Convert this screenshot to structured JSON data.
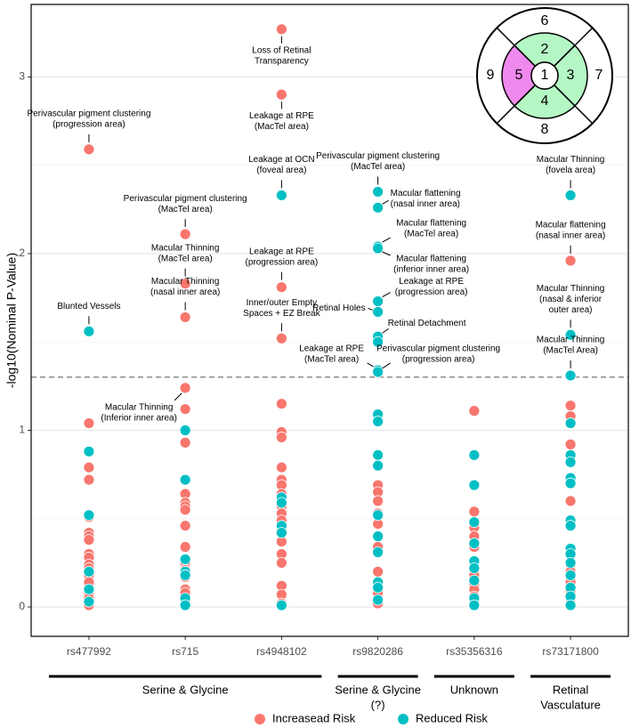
{
  "chart_data": {
    "type": "strip",
    "y_label": "-log10(Nominal P-Value)",
    "categories": [
      "rs477992",
      "rs715",
      "rs4948102",
      "rs9820286",
      "rs35356316",
      "rs73171800"
    ],
    "groups": [
      [
        "Serine & Glycine"
      ],
      [
        "Serine & Glycine",
        "(?)"
      ],
      [
        "Unknown"
      ],
      [
        "Retinal",
        "Vasculature"
      ]
    ],
    "ylim": [
      -0.166,
      3.41
    ],
    "yticks": [
      0,
      1,
      2,
      3
    ],
    "minor_grid": [
      0.5,
      1.5,
      2.5
    ],
    "grid": true,
    "hline": 1.301,
    "legend": "bottom",
    "inset": {
      "zones": [
        "1",
        "2",
        "3",
        "4",
        "5",
        "6",
        "7",
        "8",
        "9"
      ]
    },
    "series": [
      {
        "name": "Increasead Risk",
        "color": "#F8766D",
        "values": [
          [
            {
              "value": 2.59,
              "label": [
                "Perivascular pigment clustering",
                "(progression area)"
              ]
            },
            1.04,
            0.79,
            0.72,
            0.51,
            0.42,
            0.4,
            0.38,
            0.3,
            0.28,
            0.24,
            0.22,
            0.18,
            0.14,
            0.08,
            0.05,
            0.01
          ],
          [
            {
              "value": 2.11,
              "label": [
                "Perivascular pigment clustering",
                "(MacTel area)"
              ]
            },
            {
              "value": 1.83,
              "label": [
                "Macular Thinning",
                "(MacTel area)"
              ]
            },
            {
              "value": 1.64,
              "label": [
                "Macular Thinning",
                "(nasal inner area)"
              ]
            },
            {
              "value": 1.24,
              "label": [
                "Macular Thinning",
                "(Inferior inner area)"
              ]
            },
            1.12,
            0.93,
            0.64,
            0.59,
            0.57,
            0.55,
            0.46,
            0.34,
            0.25,
            0.21,
            0.17,
            0.1,
            0.08,
            0.02
          ],
          [
            {
              "value": 3.27,
              "label": [
                "Loss of Retinal",
                "Transparency"
              ]
            },
            {
              "value": 2.9,
              "label": [
                "Leakage at RPE",
                "(MacTel area)"
              ]
            },
            {
              "value": 1.81,
              "label": [
                "Leakage at RPE",
                "(progression area)"
              ]
            },
            {
              "value": 1.52,
              "label": [
                "Inner/outer Empty",
                "Spaces + EZ Break"
              ]
            },
            1.15,
            0.99,
            0.96,
            0.79,
            0.72,
            0.69,
            0.64,
            0.57,
            0.53,
            0.49,
            0.44,
            0.37,
            0.3,
            0.25,
            0.12,
            0.07,
            0.02
          ],
          [
            0.69,
            0.65,
            0.6,
            0.53,
            0.47,
            0.34,
            0.2,
            0.14,
            0.08,
            0.02
          ],
          [
            1.11,
            0.54,
            0.45,
            0.4,
            0.34,
            0.22,
            0.18,
            0.13,
            0.1,
            0.06,
            0.02
          ],
          [
            {
              "value": 1.96,
              "label": [
                "Macular flattening",
                "(nasal inner area)"
              ]
            },
            1.14,
            1.08,
            0.92,
            0.85,
            0.6,
            0.24,
            0.2,
            0.14,
            0.09,
            0.05,
            0.02
          ]
        ]
      },
      {
        "name": "Reduced Risk",
        "color": "#00BFC4",
        "values": [
          [
            {
              "value": 1.56,
              "label": [
                "Blunted Vessels"
              ]
            },
            0.88,
            0.52,
            0.2,
            0.1,
            0.03
          ],
          [
            1.0,
            0.72,
            0.27,
            0.2,
            0.18,
            0.05,
            0.01
          ],
          [
            {
              "value": 2.33,
              "label": [
                "Leakage at OCN",
                "(foveal area)"
              ]
            },
            0.62,
            0.59,
            0.46,
            0.42,
            0.01
          ],
          [
            {
              "value": 2.35,
              "label": [
                "Perivascular pigment clustering",
                "(MacTel area)"
              ]
            },
            {
              "value": 2.26,
              "label": [
                "Macular flattening",
                "(nasal inner area)"
              ]
            },
            {
              "value": 2.04,
              "label": [
                "Macular flattening",
                "(MacTel area)"
              ]
            },
            {
              "value": 2.03,
              "label": [
                "Macular flattening",
                "(inferior inner area)"
              ]
            },
            {
              "value": 1.73,
              "label": [
                "Leakage at RPE",
                "(progression area)"
              ]
            },
            {
              "value": 1.67,
              "label": [
                "Retinal Holes"
              ]
            },
            {
              "value": 1.53,
              "label": [
                "Retinal Detachment"
              ]
            },
            {
              "value": 1.34,
              "label": [
                "Leakage at RPE",
                "(MacTel area)"
              ]
            },
            {
              "value": 1.33,
              "label": [
                "Perivascular pigment clustering",
                "(progression area)"
              ]
            },
            1.5,
            1.09,
            1.05,
            0.86,
            0.8,
            0.52,
            0.4,
            0.31,
            0.14,
            0.11,
            0.04
          ],
          [
            0.86,
            0.69,
            0.48,
            0.36,
            0.26,
            0.22,
            0.15,
            0.05,
            0.01
          ],
          [
            {
              "value": 2.33,
              "label": [
                "Macular Thinning",
                "(fovela area)"
              ]
            },
            {
              "value": 1.54,
              "label": [
                "Macular Thinning",
                "(nasal & inferior",
                "outer area)"
              ]
            },
            {
              "value": 1.31,
              "label": [
                "Macular Thinning",
                "(MacTel Area)"
              ]
            },
            1.04,
            0.86,
            0.82,
            0.73,
            0.7,
            0.49,
            0.46,
            0.33,
            0.3,
            0.25,
            0.18,
            0.11,
            0.06,
            0.01
          ]
        ]
      }
    ]
  }
}
